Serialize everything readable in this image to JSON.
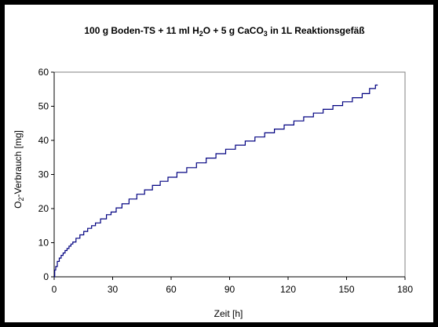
{
  "chart_data": {
    "type": "line",
    "title": {
      "prefix": "100 g Boden-TS + 11 ml H",
      "sub1": "2",
      "middle": "O + 5 g CaCO",
      "sub2": "3",
      "suffix": " in 1L Reaktionsgefäß"
    },
    "xlabel": "Zeit [h]",
    "ylabel": {
      "prefix": "O",
      "sub": "2",
      "suffix": "-Verbrauch [mg]"
    },
    "xlim": [
      0,
      180
    ],
    "ylim": [
      0,
      60
    ],
    "xticks": [
      "0",
      "30",
      "60",
      "90",
      "120",
      "150",
      "180"
    ],
    "yticks": [
      "0",
      "10",
      "20",
      "30",
      "40",
      "50",
      "60"
    ],
    "grid": false,
    "legend": "none",
    "line_color": "#000080",
    "series": [
      {
        "x": [
          0,
          0.5,
          1,
          2,
          3,
          4,
          5,
          6,
          7,
          8,
          9,
          10,
          12,
          14,
          16,
          18,
          20,
          22,
          25,
          28,
          30,
          33,
          36,
          40,
          44,
          48,
          52,
          56,
          60,
          65,
          70,
          75,
          80,
          85,
          90,
          95,
          100,
          105,
          110,
          115,
          120,
          125,
          130,
          135,
          140,
          145,
          150,
          155,
          160,
          163,
          166
        ],
        "y": [
          0,
          2.0,
          3.0,
          4.5,
          5.5,
          6.3,
          7.0,
          7.7,
          8.3,
          9.0,
          9.6,
          10.2,
          11.3,
          12.3,
          13.3,
          14.2,
          15.0,
          15.8,
          17.0,
          18.2,
          19.0,
          20.2,
          21.4,
          22.8,
          24.2,
          25.5,
          26.8,
          28.0,
          29.2,
          30.6,
          32.0,
          33.4,
          34.8,
          36.1,
          37.4,
          38.6,
          39.8,
          41.0,
          42.2,
          43.3,
          44.5,
          45.7,
          46.9,
          48.0,
          49.1,
          50.2,
          51.3,
          52.5,
          53.7,
          55.2,
          56.2
        ]
      }
    ]
  }
}
